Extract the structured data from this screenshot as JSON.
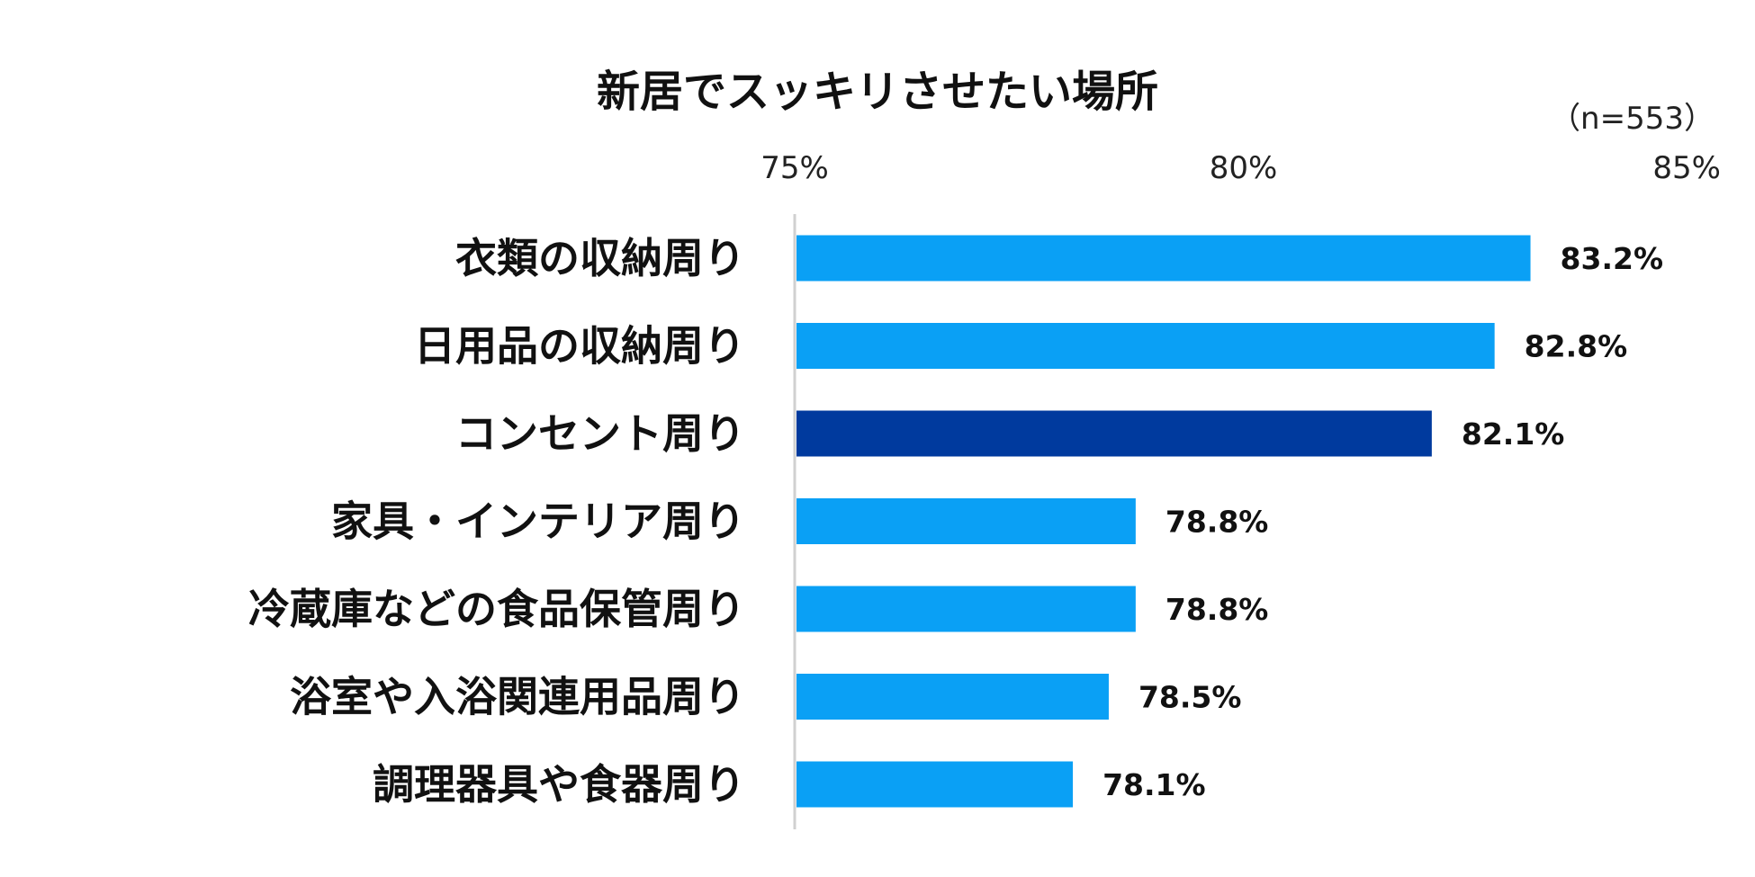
{
  "chart_data": {
    "type": "bar",
    "orientation": "horizontal",
    "title": "新居でスッキリさせたい場所",
    "sample_note": "（n=553）",
    "xlim": [
      75,
      85
    ],
    "ticks": [
      75,
      80,
      85
    ],
    "tick_labels": [
      "75%",
      "80%",
      "85%"
    ],
    "categories": [
      "衣類の収納周り",
      "日用品の収納周り",
      "コンセント周り",
      "家具・インテリア周り",
      "冷蔵庫などの食品保管周り",
      "浴室や入浴関連用品周り",
      "調理器具や食器周り"
    ],
    "values": [
      83.2,
      82.8,
      82.1,
      78.8,
      78.8,
      78.5,
      78.1
    ],
    "value_labels": [
      "83.2%",
      "82.8%",
      "82.1%",
      "78.8%",
      "78.8%",
      "78.5%",
      "78.1%"
    ],
    "highlight_index": 2,
    "colors": {
      "bar": "#0aa0f5",
      "highlight": "#003a9e",
      "axis": "#d0d0d0"
    },
    "grid": false,
    "legend": "none"
  }
}
